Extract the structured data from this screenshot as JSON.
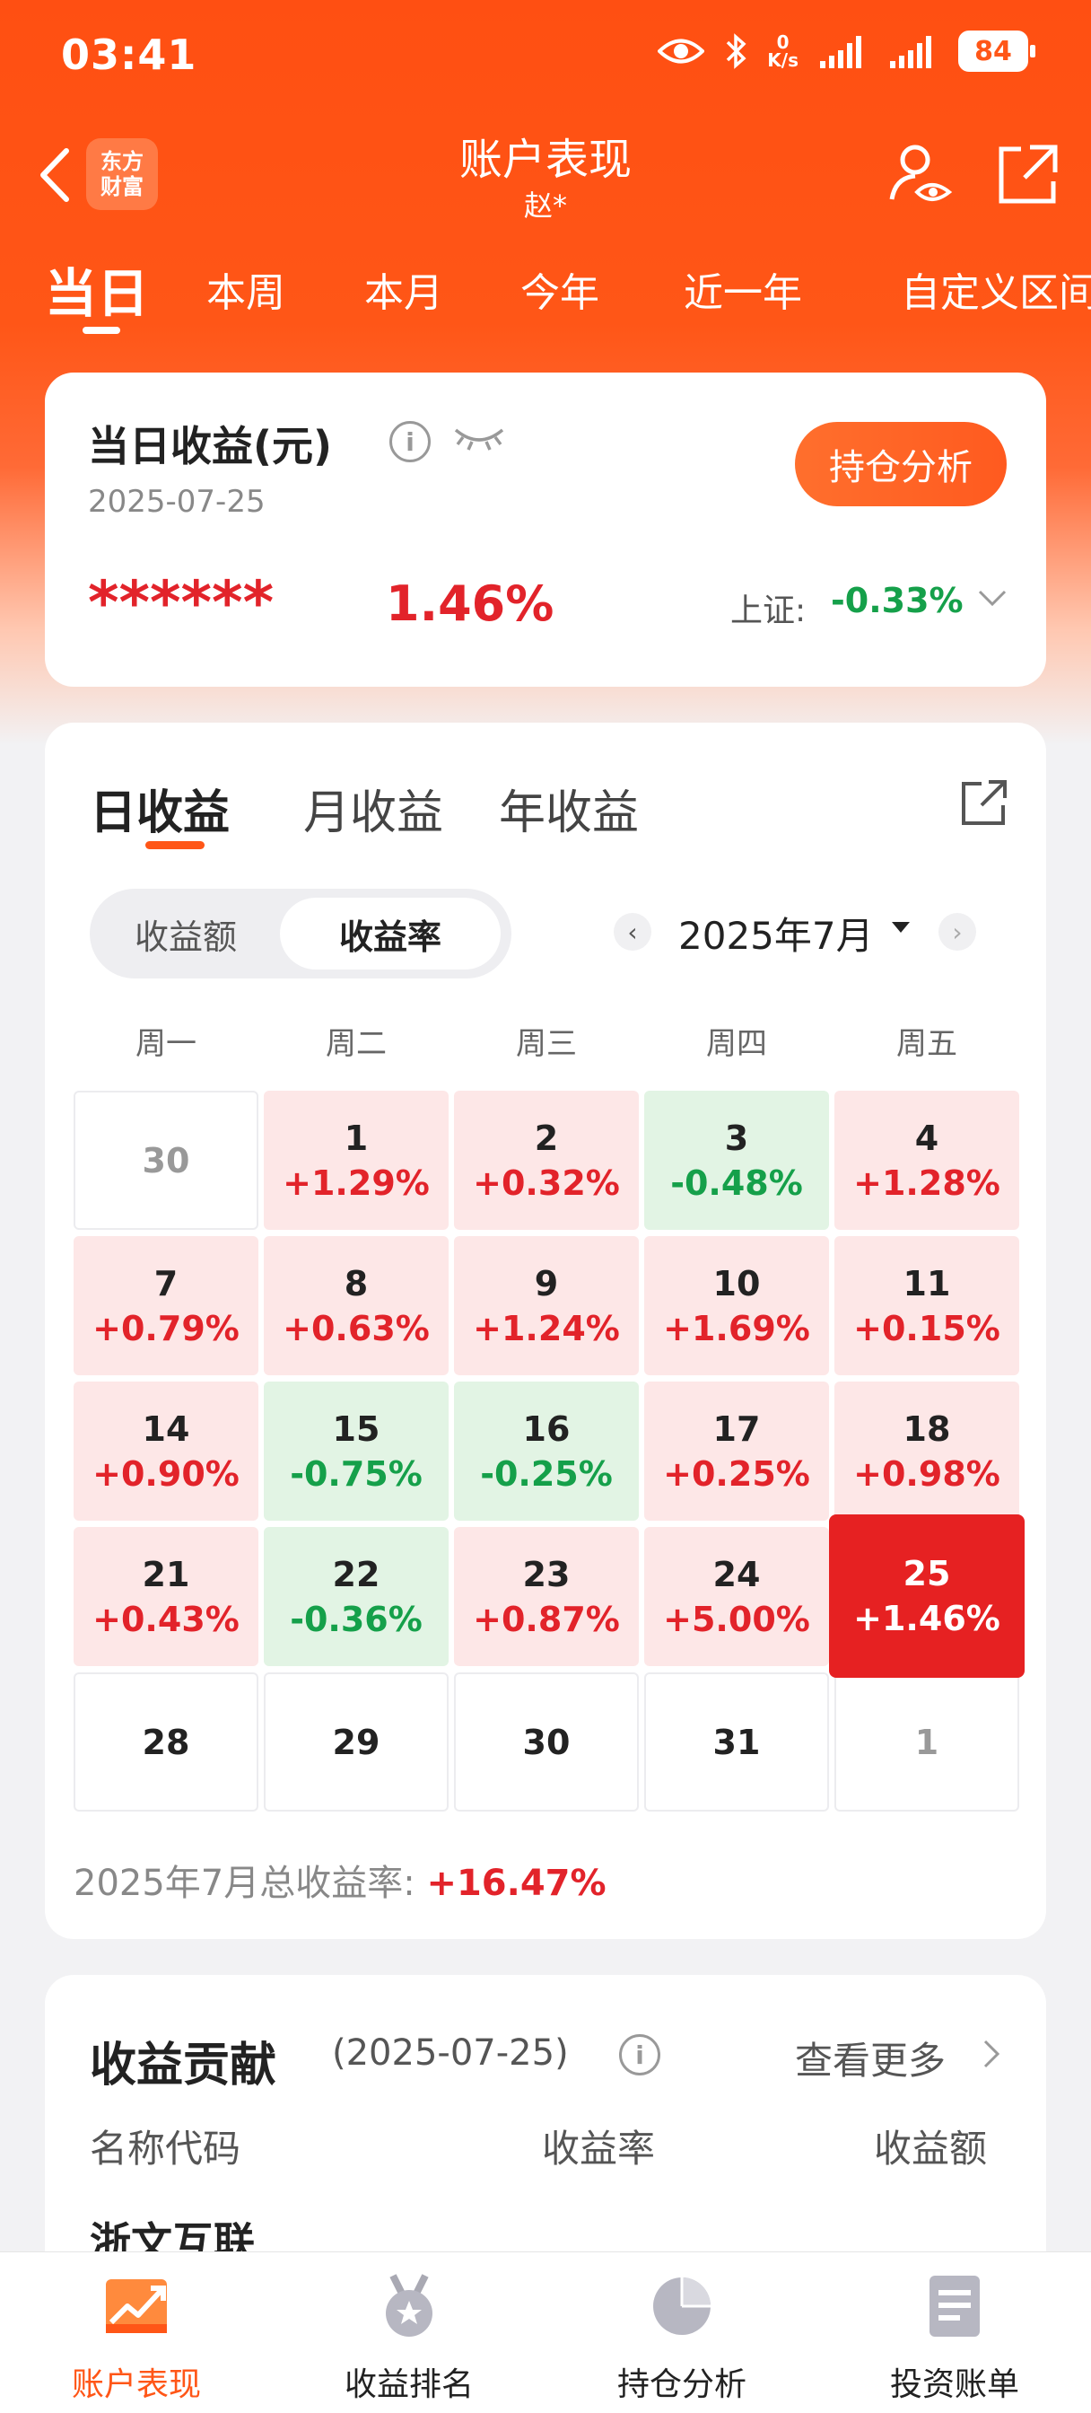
{
  "status": {
    "time": "03:41",
    "net_speed_top": "0",
    "net_speed_unit": "K/s",
    "battery": "84"
  },
  "nav": {
    "logo_line1": "东方",
    "logo_line2": "财富",
    "title": "账户表现",
    "subtitle": "赵*"
  },
  "period_tabs": [
    "当日",
    "本周",
    "本月",
    "今年",
    "近一年",
    "自定义区间"
  ],
  "summary": {
    "title": "当日收益(元)",
    "date": "2025-07-25",
    "hold_button": "持仓分析",
    "masked_amount": "******",
    "rate": "1.46%",
    "index_label": "上证:",
    "index_value": "-0.33%"
  },
  "calendar": {
    "tabs": [
      "日收益",
      "月收益",
      "年收益"
    ],
    "toggle": [
      "收益额",
      "收益率"
    ],
    "month_label": "2025年7月",
    "weekdays": [
      "周一",
      "周二",
      "周三",
      "周四",
      "周五"
    ],
    "cells": [
      {
        "d": "30",
        "r": "",
        "kind": "other"
      },
      {
        "d": "1",
        "r": "+1.29%",
        "kind": "up"
      },
      {
        "d": "2",
        "r": "+0.32%",
        "kind": "up"
      },
      {
        "d": "3",
        "r": "-0.48%",
        "kind": "down"
      },
      {
        "d": "4",
        "r": "+1.28%",
        "kind": "up"
      },
      {
        "d": "7",
        "r": "+0.79%",
        "kind": "up"
      },
      {
        "d": "8",
        "r": "+0.63%",
        "kind": "up"
      },
      {
        "d": "9",
        "r": "+1.24%",
        "kind": "up"
      },
      {
        "d": "10",
        "r": "+1.69%",
        "kind": "up"
      },
      {
        "d": "11",
        "r": "+0.15%",
        "kind": "up"
      },
      {
        "d": "14",
        "r": "+0.90%",
        "kind": "up"
      },
      {
        "d": "15",
        "r": "-0.75%",
        "kind": "down"
      },
      {
        "d": "16",
        "r": "-0.25%",
        "kind": "down"
      },
      {
        "d": "17",
        "r": "+0.25%",
        "kind": "up"
      },
      {
        "d": "18",
        "r": "+0.98%",
        "kind": "up"
      },
      {
        "d": "21",
        "r": "+0.43%",
        "kind": "up"
      },
      {
        "d": "22",
        "r": "-0.36%",
        "kind": "down"
      },
      {
        "d": "23",
        "r": "+0.87%",
        "kind": "up"
      },
      {
        "d": "24",
        "r": "+5.00%",
        "kind": "up"
      },
      {
        "d": "25",
        "r": "+1.46%",
        "kind": "selected"
      },
      {
        "d": "28",
        "r": "",
        "kind": "blank"
      },
      {
        "d": "29",
        "r": "",
        "kind": "blank"
      },
      {
        "d": "30",
        "r": "",
        "kind": "blank"
      },
      {
        "d": "31",
        "r": "",
        "kind": "blank"
      },
      {
        "d": "1",
        "r": "",
        "kind": "other"
      }
    ],
    "total_label": "2025年7月总收益率:",
    "total_value": "+16.47%"
  },
  "contribution": {
    "title": "收益贡献",
    "date": "(2025-07-25)",
    "more": "查看更多",
    "col_name": "名称代码",
    "col_rate": "收益率",
    "col_amount": "收益额",
    "first_row_name": "浙文互联"
  },
  "bottom_nav": [
    "账户表现",
    "收益排名",
    "持仓分析",
    "投资账单"
  ],
  "colors": {
    "brand": "#ff5617",
    "up": "#e2232a",
    "down": "#15a04a"
  }
}
